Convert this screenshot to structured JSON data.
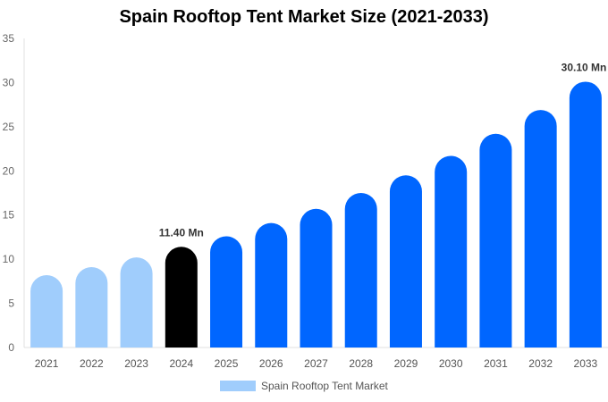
{
  "chart_data": {
    "type": "bar",
    "title": "Spain Rooftop Tent Market Size (2021-2033)",
    "categories": [
      "2021",
      "2022",
      "2023",
      "2024",
      "2025",
      "2026",
      "2027",
      "2028",
      "2029",
      "2030",
      "2031",
      "2032",
      "2033"
    ],
    "series": [
      {
        "name": "Spain Rooftop Tent Market",
        "values": [
          8.2,
          9.1,
          10.2,
          11.4,
          12.6,
          14.1,
          15.7,
          17.5,
          19.5,
          21.7,
          24.2,
          26.9,
          30.1
        ]
      }
    ],
    "data_labels": [
      {
        "category": "2024",
        "text": "11.40 Mn"
      },
      {
        "category": "2033",
        "text": "30.10 Mn"
      }
    ],
    "ylim": [
      0,
      35
    ],
    "yticks": [
      0,
      5,
      10,
      15,
      20,
      25,
      30,
      35
    ],
    "grid": false,
    "legend": "bottom",
    "colors": {
      "historical": "#a0cdfc",
      "base_year": "#000000",
      "forecast": "#0066ff"
    },
    "bar_color_groups": [
      "historical",
      "historical",
      "historical",
      "base_year",
      "forecast",
      "forecast",
      "forecast",
      "forecast",
      "forecast",
      "forecast",
      "forecast",
      "forecast",
      "forecast"
    ]
  }
}
